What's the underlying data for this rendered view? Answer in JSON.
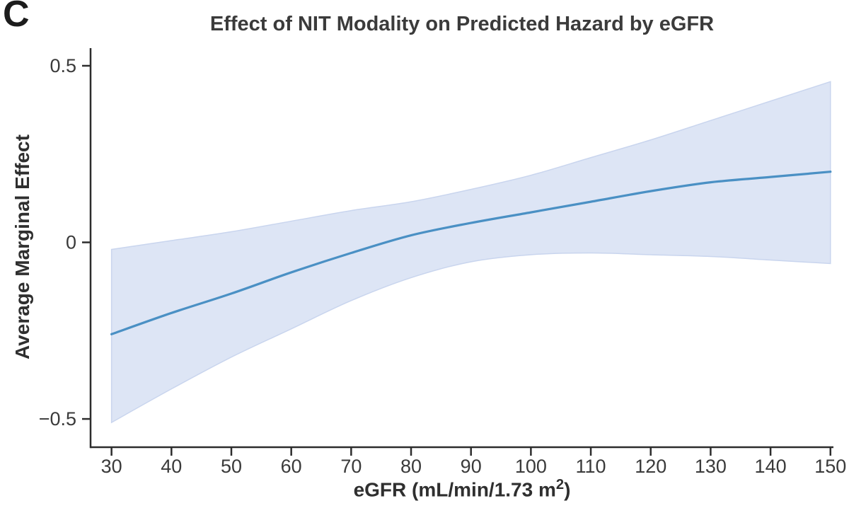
{
  "panel_label": "C",
  "chart_data": {
    "type": "line",
    "title": "Effect of NIT Modality on Predicted Hazard by eGFR",
    "xlabel": "eGFR (mL/min/1.73 m²)",
    "xlabel_parts": {
      "prefix": "eGFR (mL/min/1.73 m",
      "sup": "2",
      "suffix": ")"
    },
    "ylabel": "Average Marginal Effect",
    "x": [
      30,
      40,
      50,
      60,
      70,
      80,
      90,
      100,
      110,
      120,
      130,
      140,
      150
    ],
    "series": [
      {
        "name": "Average marginal effect",
        "values": [
          -0.26,
          -0.2,
          -0.145,
          -0.085,
          -0.03,
          0.02,
          0.055,
          0.085,
          0.115,
          0.145,
          0.17,
          0.185,
          0.2
        ]
      }
    ],
    "band": {
      "name": "Confidence interval",
      "upper": [
        -0.02,
        0.005,
        0.03,
        0.06,
        0.09,
        0.115,
        0.15,
        0.19,
        0.24,
        0.29,
        0.345,
        0.4,
        0.455
      ],
      "lower": [
        -0.51,
        -0.415,
        -0.325,
        -0.245,
        -0.165,
        -0.1,
        -0.055,
        -0.035,
        -0.03,
        -0.035,
        -0.04,
        -0.05,
        -0.06
      ]
    },
    "xlim": [
      26.5,
      150.5
    ],
    "ylim": [
      -0.58,
      0.55
    ],
    "xticks": [
      30,
      40,
      50,
      60,
      70,
      80,
      90,
      100,
      110,
      120,
      130,
      140,
      150
    ],
    "xtick_labels": [
      "30",
      "40",
      "50",
      "60",
      "70",
      "80",
      "90",
      "100",
      "110",
      "120",
      "130",
      "140",
      "150"
    ],
    "yticks": [
      -0.5,
      0,
      0.5
    ],
    "ytick_labels": [
      "−0.5",
      "0",
      "0.5"
    ],
    "grid": false,
    "legend": "none",
    "colors": {
      "line": "#4a90c4",
      "band_fill": "#dde5f5",
      "band_edge": "#c9d5ee",
      "axis": "#2d2d2d",
      "text": "#3a3a3a"
    }
  }
}
